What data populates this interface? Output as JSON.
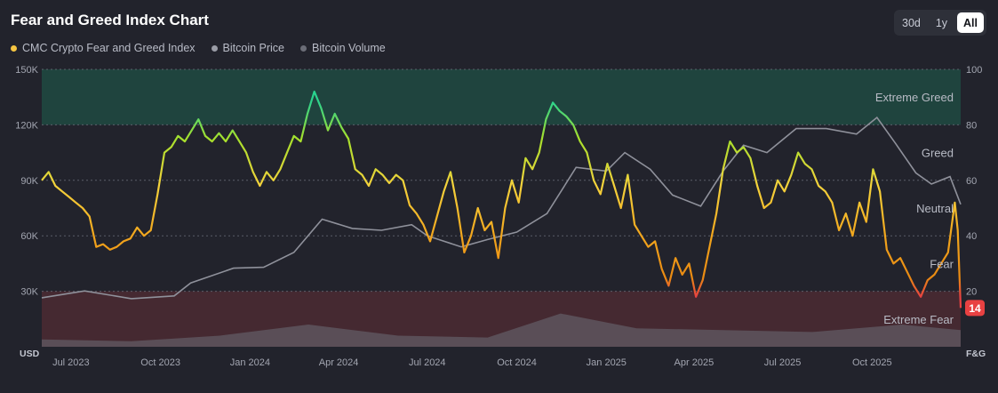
{
  "header": {
    "title": "Fear and Greed Index Chart",
    "ranges": [
      "30d",
      "1y",
      "All"
    ],
    "active_range": "All"
  },
  "legend": {
    "items": [
      {
        "label": "CMC Crypto Fear and Greed Index",
        "color": "#f5c542"
      },
      {
        "label": "Bitcoin Price",
        "color": "#9a9ca6"
      },
      {
        "label": "Bitcoin Volume",
        "color": "#6b6d77"
      }
    ]
  },
  "chart_data": {
    "type": "line",
    "x_start": "2023-06-01",
    "x_end": "2025-12-31",
    "x_ticks": [
      {
        "label": "Jul 2023",
        "date": "2023-07-01"
      },
      {
        "label": "Oct 2023",
        "date": "2023-10-01"
      },
      {
        "label": "Jan 2024",
        "date": "2024-01-01"
      },
      {
        "label": "Apr 2024",
        "date": "2024-04-01"
      },
      {
        "label": "Jul 2024",
        "date": "2024-07-01"
      },
      {
        "label": "Oct 2024",
        "date": "2024-10-01"
      },
      {
        "label": "Jan 2025",
        "date": "2025-01-01"
      },
      {
        "label": "Apr 2025",
        "date": "2025-04-01"
      },
      {
        "label": "Jul 2025",
        "date": "2025-07-01"
      },
      {
        "label": "Oct 2025",
        "date": "2025-10-01"
      }
    ],
    "y_left": {
      "label": "USD",
      "min": 0,
      "max": 150000,
      "ticks": [
        "0",
        "30K",
        "60K",
        "90K",
        "120K",
        "150K"
      ],
      "tick_values": [
        0,
        30000,
        60000,
        90000,
        120000,
        150000
      ]
    },
    "y_right": {
      "label": "F&G",
      "min": 0,
      "max": 100,
      "ticks": [
        "20",
        "40",
        "60",
        "80",
        "100"
      ],
      "tick_values": [
        20,
        40,
        60,
        80,
        100
      ]
    },
    "zones": [
      {
        "name": "Extreme Greed",
        "from": 80,
        "to": 100,
        "color": "#1f4a42"
      },
      {
        "name": "Greed",
        "from": 60,
        "to": 80
      },
      {
        "name": "Neutral",
        "from": 40,
        "to": 60
      },
      {
        "name": "Fear",
        "from": 20,
        "to": 40
      },
      {
        "name": "Extreme Fear",
        "from": 0,
        "to": 20,
        "color": "#4b2a33"
      }
    ],
    "current_value": {
      "value": 14,
      "label": "14",
      "color": "#e84142"
    },
    "series": [
      {
        "name": "CMC Crypto Fear and Greed Index",
        "axis": "right",
        "points": [
          [
            "2023-06-01",
            60
          ],
          [
            "2023-06-08",
            63
          ],
          [
            "2023-06-15",
            58
          ],
          [
            "2023-06-22",
            56
          ],
          [
            "2023-06-29",
            54
          ],
          [
            "2023-07-06",
            52
          ],
          [
            "2023-07-13",
            50
          ],
          [
            "2023-07-20",
            47
          ],
          [
            "2023-07-27",
            36
          ],
          [
            "2023-08-03",
            37
          ],
          [
            "2023-08-10",
            35
          ],
          [
            "2023-08-17",
            36
          ],
          [
            "2023-08-24",
            38
          ],
          [
            "2023-08-31",
            39
          ],
          [
            "2023-09-07",
            43
          ],
          [
            "2023-09-14",
            40
          ],
          [
            "2023-09-21",
            42
          ],
          [
            "2023-09-28",
            55
          ],
          [
            "2023-10-05",
            70
          ],
          [
            "2023-10-12",
            72
          ],
          [
            "2023-10-19",
            76
          ],
          [
            "2023-10-26",
            74
          ],
          [
            "2023-11-02",
            78
          ],
          [
            "2023-11-09",
            82
          ],
          [
            "2023-11-16",
            76
          ],
          [
            "2023-11-23",
            74
          ],
          [
            "2023-11-30",
            77
          ],
          [
            "2023-12-07",
            74
          ],
          [
            "2023-12-14",
            78
          ],
          [
            "2023-12-21",
            74
          ],
          [
            "2023-12-28",
            70
          ],
          [
            "2024-01-04",
            63
          ],
          [
            "2024-01-11",
            58
          ],
          [
            "2024-01-18",
            63
          ],
          [
            "2024-01-25",
            60
          ],
          [
            "2024-02-01",
            64
          ],
          [
            "2024-02-08",
            70
          ],
          [
            "2024-02-15",
            76
          ],
          [
            "2024-02-22",
            74
          ],
          [
            "2024-02-29",
            84
          ],
          [
            "2024-03-07",
            92
          ],
          [
            "2024-03-14",
            86
          ],
          [
            "2024-03-21",
            78
          ],
          [
            "2024-03-28",
            84
          ],
          [
            "2024-04-04",
            79
          ],
          [
            "2024-04-11",
            75
          ],
          [
            "2024-04-18",
            64
          ],
          [
            "2024-04-25",
            62
          ],
          [
            "2024-05-02",
            58
          ],
          [
            "2024-05-09",
            64
          ],
          [
            "2024-05-16",
            62
          ],
          [
            "2024-05-23",
            59
          ],
          [
            "2024-05-30",
            62
          ],
          [
            "2024-06-06",
            60
          ],
          [
            "2024-06-13",
            51
          ],
          [
            "2024-06-20",
            48
          ],
          [
            "2024-06-27",
            44
          ],
          [
            "2024-07-04",
            38
          ],
          [
            "2024-07-11",
            47
          ],
          [
            "2024-07-18",
            56
          ],
          [
            "2024-07-25",
            63
          ],
          [
            "2024-08-01",
            50
          ],
          [
            "2024-08-08",
            34
          ],
          [
            "2024-08-15",
            40
          ],
          [
            "2024-08-22",
            50
          ],
          [
            "2024-08-29",
            42
          ],
          [
            "2024-09-05",
            45
          ],
          [
            "2024-09-12",
            32
          ],
          [
            "2024-09-19",
            50
          ],
          [
            "2024-09-26",
            60
          ],
          [
            "2024-10-03",
            52
          ],
          [
            "2024-10-10",
            68
          ],
          [
            "2024-10-17",
            64
          ],
          [
            "2024-10-24",
            70
          ],
          [
            "2024-10-31",
            82
          ],
          [
            "2024-11-07",
            88
          ],
          [
            "2024-11-14",
            85
          ],
          [
            "2024-11-21",
            83
          ],
          [
            "2024-11-28",
            80
          ],
          [
            "2024-12-05",
            74
          ],
          [
            "2024-12-12",
            70
          ],
          [
            "2024-12-19",
            60
          ],
          [
            "2024-12-26",
            55
          ],
          [
            "2025-01-02",
            66
          ],
          [
            "2025-01-09",
            58
          ],
          [
            "2025-01-16",
            50
          ],
          [
            "2025-01-23",
            62
          ],
          [
            "2025-01-30",
            44
          ],
          [
            "2025-02-06",
            40
          ],
          [
            "2025-02-13",
            36
          ],
          [
            "2025-02-20",
            38
          ],
          [
            "2025-02-27",
            28
          ],
          [
            "2025-03-06",
            22
          ],
          [
            "2025-03-13",
            32
          ],
          [
            "2025-03-20",
            26
          ],
          [
            "2025-03-27",
            30
          ],
          [
            "2025-04-03",
            18
          ],
          [
            "2025-04-10",
            24
          ],
          [
            "2025-04-17",
            36
          ],
          [
            "2025-04-24",
            48
          ],
          [
            "2025-05-01",
            64
          ],
          [
            "2025-05-08",
            74
          ],
          [
            "2025-05-15",
            70
          ],
          [
            "2025-05-22",
            72
          ],
          [
            "2025-05-29",
            68
          ],
          [
            "2025-06-05",
            58
          ],
          [
            "2025-06-12",
            50
          ],
          [
            "2025-06-19",
            52
          ],
          [
            "2025-06-26",
            60
          ],
          [
            "2025-07-03",
            56
          ],
          [
            "2025-07-10",
            62
          ],
          [
            "2025-07-17",
            70
          ],
          [
            "2025-07-24",
            66
          ],
          [
            "2025-07-31",
            64
          ],
          [
            "2025-08-07",
            58
          ],
          [
            "2025-08-14",
            56
          ],
          [
            "2025-08-21",
            52
          ],
          [
            "2025-08-28",
            42
          ],
          [
            "2025-09-04",
            48
          ],
          [
            "2025-09-11",
            40
          ],
          [
            "2025-09-18",
            52
          ],
          [
            "2025-09-25",
            45
          ],
          [
            "2025-10-02",
            64
          ],
          [
            "2025-10-09",
            56
          ],
          [
            "2025-10-16",
            35
          ],
          [
            "2025-10-23",
            30
          ],
          [
            "2025-10-30",
            32
          ],
          [
            "2025-11-06",
            27
          ],
          [
            "2025-11-13",
            22
          ],
          [
            "2025-11-20",
            18
          ],
          [
            "2025-11-27",
            24
          ],
          [
            "2025-12-04",
            26
          ],
          [
            "2025-12-11",
            30
          ],
          [
            "2025-12-18",
            34
          ],
          [
            "2025-12-25",
            52
          ],
          [
            "2025-12-28",
            42
          ],
          [
            "2025-12-31",
            14
          ]
        ]
      },
      {
        "name": "Bitcoin Price",
        "axis": "left",
        "points": [
          [
            "2023-06-01",
            26500
          ],
          [
            "2023-07-15",
            30200
          ],
          [
            "2023-09-01",
            26000
          ],
          [
            "2023-10-15",
            27500
          ],
          [
            "2023-11-01",
            34500
          ],
          [
            "2023-12-15",
            42500
          ],
          [
            "2024-01-15",
            43000
          ],
          [
            "2024-02-15",
            51000
          ],
          [
            "2024-03-15",
            69000
          ],
          [
            "2024-04-15",
            64000
          ],
          [
            "2024-05-15",
            63000
          ],
          [
            "2024-06-15",
            66000
          ],
          [
            "2024-07-01",
            60000
          ],
          [
            "2024-08-05",
            54000
          ],
          [
            "2024-09-01",
            58000
          ],
          [
            "2024-10-01",
            62000
          ],
          [
            "2024-11-01",
            72000
          ],
          [
            "2024-12-01",
            97000
          ],
          [
            "2025-01-01",
            95000
          ],
          [
            "2025-01-20",
            105000
          ],
          [
            "2025-02-15",
            96000
          ],
          [
            "2025-03-10",
            82000
          ],
          [
            "2025-04-08",
            76000
          ],
          [
            "2025-05-01",
            95000
          ],
          [
            "2025-05-22",
            109000
          ],
          [
            "2025-06-15",
            105000
          ],
          [
            "2025-07-15",
            118000
          ],
          [
            "2025-08-15",
            118000
          ],
          [
            "2025-09-15",
            115000
          ],
          [
            "2025-10-06",
            124000
          ],
          [
            "2025-10-25",
            110000
          ],
          [
            "2025-11-15",
            94000
          ],
          [
            "2025-12-01",
            88000
          ],
          [
            "2025-12-20",
            92000
          ],
          [
            "2025-12-31",
            77000
          ]
        ]
      },
      {
        "name": "Bitcoin Volume",
        "axis": "left",
        "points": [
          [
            "2023-06-01",
            4000
          ],
          [
            "2023-09-01",
            3000
          ],
          [
            "2023-12-01",
            6000
          ],
          [
            "2024-03-01",
            12000
          ],
          [
            "2024-06-01",
            6000
          ],
          [
            "2024-09-01",
            5000
          ],
          [
            "2024-11-15",
            18000
          ],
          [
            "2025-02-01",
            10000
          ],
          [
            "2025-05-01",
            9000
          ],
          [
            "2025-08-01",
            8000
          ],
          [
            "2025-11-01",
            12000
          ],
          [
            "2025-12-31",
            9000
          ]
        ]
      }
    ]
  }
}
